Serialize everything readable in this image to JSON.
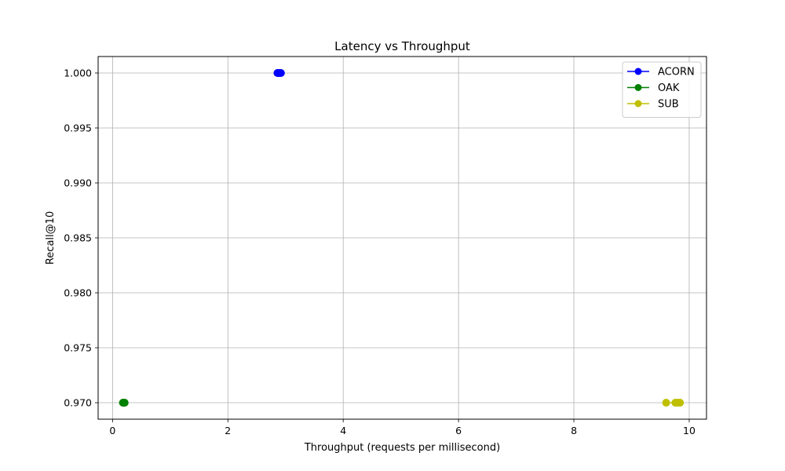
{
  "chart_data": {
    "type": "line",
    "title": "Latency vs Throughput",
    "xlabel": "Throughput (requests per millisecond)",
    "ylabel": "Recall@10",
    "xlim": [
      -0.25,
      10.3
    ],
    "ylim": [
      0.9685,
      1.0015
    ],
    "xticks": [
      0,
      2,
      4,
      6,
      8,
      10
    ],
    "xtick_labels": [
      "0",
      "2",
      "4",
      "6",
      "8",
      "10"
    ],
    "yticks": [
      0.97,
      0.975,
      0.98,
      0.985,
      0.99,
      0.995,
      1.0
    ],
    "ytick_labels": [
      "0.970",
      "0.975",
      "0.980",
      "0.985",
      "0.990",
      "0.995",
      "1.000"
    ],
    "grid": true,
    "legend_position": "top-right",
    "series": [
      {
        "name": "ACORN",
        "color": "#0000ff",
        "x": [
          2.86,
          2.88,
          2.9,
          2.92
        ],
        "y": [
          1.0,
          1.0,
          1.0,
          1.0
        ]
      },
      {
        "name": "OAK",
        "color": "#008000",
        "x": [
          0.18,
          0.19,
          0.2,
          0.21
        ],
        "y": [
          0.97,
          0.97,
          0.97,
          0.97
        ]
      },
      {
        "name": "SUB",
        "color": "#bfbf00",
        "x": [
          9.6,
          9.76,
          9.8,
          9.84
        ],
        "y": [
          0.97,
          0.97,
          0.97,
          0.97
        ]
      }
    ]
  }
}
